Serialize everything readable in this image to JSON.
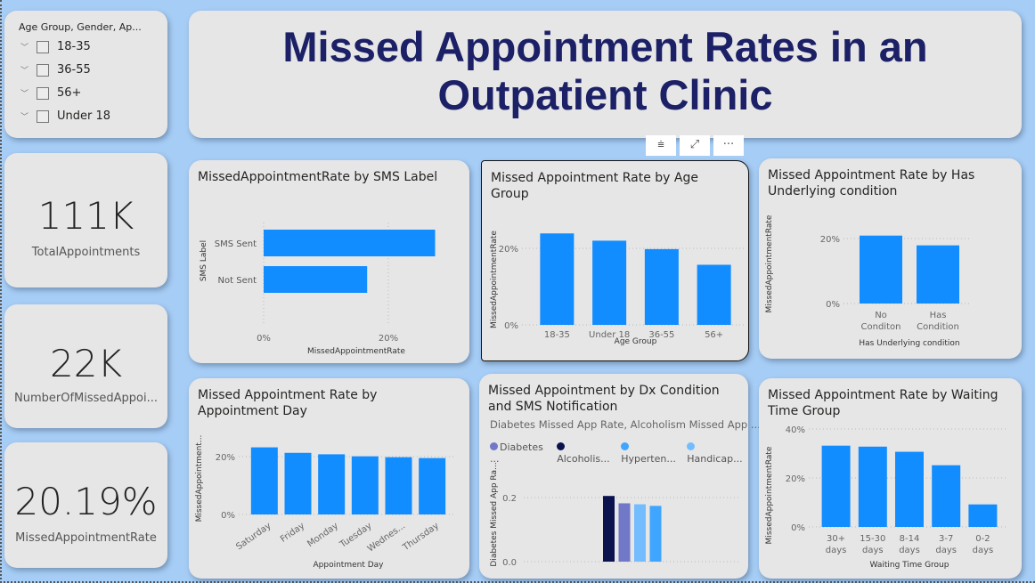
{
  "title": "Missed Appointment Rates in an Outpatient Clinic",
  "slicer": {
    "title": "Age Group, Gender, Ap...",
    "items": [
      "18-35",
      "36-55",
      "56+",
      "Under 18"
    ]
  },
  "kpis": [
    {
      "value": "111K",
      "label": "TotalAppointments"
    },
    {
      "value": "22K",
      "label": "NumberOfMissedAppoi..."
    },
    {
      "value": "20.19%",
      "label": "MissedAppointmentRate"
    }
  ],
  "toolbar": {
    "filter_icon": "filter-icon",
    "focus_icon": "focus-mode-icon",
    "more_icon": "more-options-icon",
    "filter": "⩧",
    "focus": "⤢",
    "more": "···"
  },
  "colors": {
    "bar": "#118dff",
    "title": "#1c2066",
    "background": "#a6cdf5",
    "diabetes": "#7178c8",
    "alcoholism": "#0b134e",
    "hypertension": "#3fa5ff",
    "handicap": "#73bdff"
  },
  "chart_data": [
    {
      "id": "sms",
      "type": "bar",
      "orientation": "horizontal",
      "title": "MissedAppointmentRate by SMS Label",
      "xlabel": "MissedAppointmentRate",
      "ylabel": "SMS Label",
      "categories": [
        "SMS Sent",
        "Not Sent"
      ],
      "values": [
        27.5,
        16.6
      ],
      "ticks": [
        "0%",
        "20%"
      ],
      "tick_values": [
        0,
        20
      ]
    },
    {
      "id": "age",
      "type": "bar",
      "title": "Missed Appointment Rate by Age Group",
      "xlabel": "Age Group",
      "ylabel": "MissedAppointmentRate",
      "categories": [
        "18-35",
        "Under 18",
        "36-55",
        "56+"
      ],
      "values": [
        23.9,
        22.0,
        19.8,
        15.7
      ],
      "ticks": [
        "0%",
        "20%"
      ],
      "tick_values": [
        0,
        20
      ]
    },
    {
      "id": "cond",
      "type": "bar",
      "title": "Missed Appointment Rate by Has Underlying condition",
      "xlabel": "Has Underlying condition",
      "ylabel": "MissedAppointmentRate",
      "categories": [
        "No Conditon",
        "Has Condition"
      ],
      "values": [
        20.9,
        17.9
      ],
      "ticks": [
        "0%",
        "20%"
      ],
      "tick_values": [
        0,
        20
      ]
    },
    {
      "id": "day",
      "type": "bar",
      "title": "Missed Appointment Rate by Appointment Day",
      "xlabel": "Appointment Day",
      "ylabel": "MissedAppointment...",
      "categories": [
        "Saturday",
        "Friday",
        "Monday",
        "Tuesday",
        "Wednes...",
        "Thursday"
      ],
      "values": [
        23.2,
        21.3,
        20.8,
        20.1,
        19.8,
        19.5
      ],
      "ticks": [
        "0%",
        "20%"
      ],
      "tick_values": [
        0,
        20
      ]
    },
    {
      "id": "dx",
      "type": "bar",
      "title": "Missed Appointment by Dx Condition and SMS Notification",
      "subtitle": "Diabetes Missed App Rate, Alcoholism Missed App ...",
      "ylabel": "Diabetes Missed App Ra...",
      "legend": [
        "Diabetes ...",
        "Alcoholis...",
        "Hyperten...",
        "Handicap..."
      ],
      "legend_colors": [
        "#7178c8",
        "#0b134e",
        "#3fa5ff",
        "#73bdff"
      ],
      "series": [
        {
          "name": "Alcoholism",
          "value": 0.205,
          "color": "#0b134e"
        },
        {
          "name": "Diabetes",
          "value": 0.182,
          "color": "#7178c8"
        },
        {
          "name": "Handicap",
          "value": 0.179,
          "color": "#73bdff"
        },
        {
          "name": "Hypertension",
          "value": 0.174,
          "color": "#3fa5ff"
        }
      ],
      "ticks": [
        "0.0",
        "0.2"
      ],
      "tick_values": [
        0,
        0.2
      ]
    },
    {
      "id": "wait",
      "type": "bar",
      "title": "Missed Appointment Rate by Waiting Time Group",
      "xlabel": "Waiting Time Group",
      "ylabel": "MissedAppointmentRate",
      "categories": [
        "30+ days",
        "15-30 days",
        "8-14 days",
        "3-7 days",
        "0-2 days"
      ],
      "values": [
        33.2,
        32.8,
        30.7,
        25.2,
        9.2
      ],
      "ticks": [
        "0%",
        "20%",
        "40%"
      ],
      "tick_values": [
        0,
        20,
        40
      ]
    }
  ]
}
